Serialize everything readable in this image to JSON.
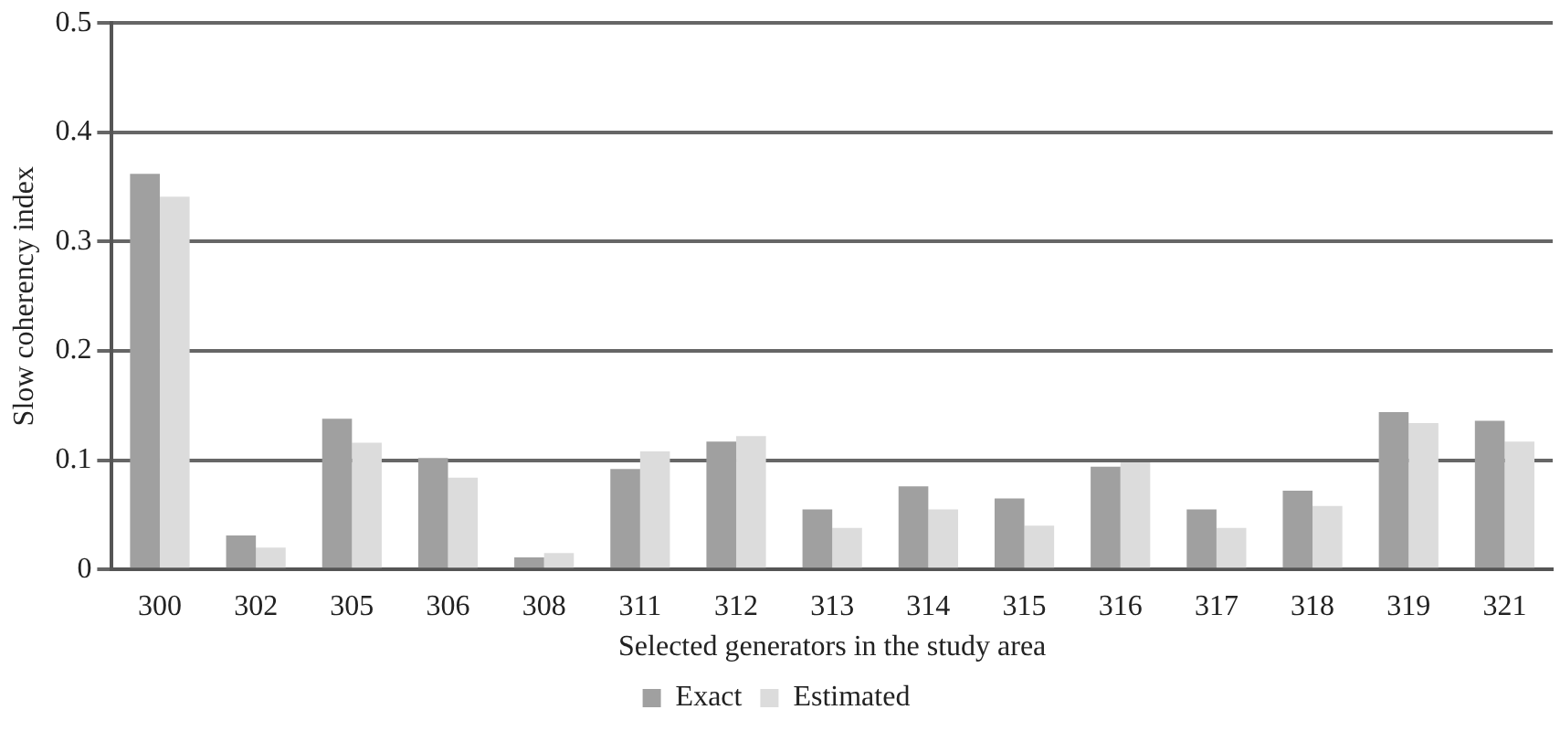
{
  "chart_data": {
    "type": "bar",
    "xlabel": "Selected generators in the study area",
    "ylabel": "Slow coherency index",
    "categories": [
      "300",
      "302",
      "305",
      "306",
      "308",
      "311",
      "312",
      "313",
      "314",
      "315",
      "316",
      "317",
      "318",
      "319",
      "321"
    ],
    "series": [
      {
        "name": "Exact",
        "color": "#a0a0a0",
        "values": [
          0.362,
          0.031,
          0.138,
          0.102,
          0.011,
          0.092,
          0.117,
          0.055,
          0.076,
          0.065,
          0.094,
          0.055,
          0.072,
          0.144,
          0.136
        ]
      },
      {
        "name": "Estimated",
        "color": "#dcdcdc",
        "values": [
          0.341,
          0.02,
          0.116,
          0.084,
          0.015,
          0.108,
          0.122,
          0.038,
          0.055,
          0.04,
          0.098,
          0.038,
          0.058,
          0.134,
          0.117
        ]
      }
    ],
    "ylim": [
      0,
      0.5
    ],
    "yticks": [
      0,
      0.1,
      0.2,
      0.3,
      0.4,
      0.5
    ],
    "grid": "y",
    "legend": "bottom"
  }
}
